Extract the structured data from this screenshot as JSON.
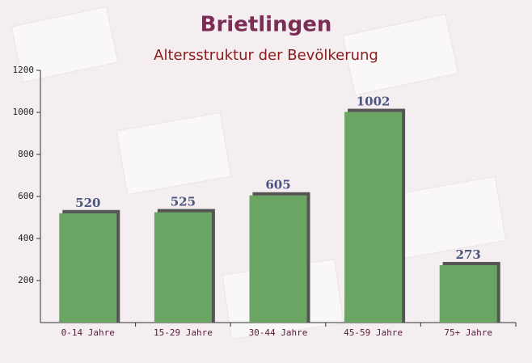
{
  "chart_data": {
    "type": "bar",
    "title": "Brietlingen",
    "subtitle": "Altersstruktur der Bevölkerung",
    "categories": [
      "0-14 Jahre",
      "15-29 Jahre",
      "30-44 Jahre",
      "45-59 Jahre",
      "75+ Jahre"
    ],
    "values": [
      520,
      525,
      605,
      1002,
      273
    ],
    "color": "#6aa564",
    "ylim": [
      0,
      1200
    ],
    "yticks": [
      200,
      400,
      600,
      800,
      1000,
      1200
    ]
  }
}
